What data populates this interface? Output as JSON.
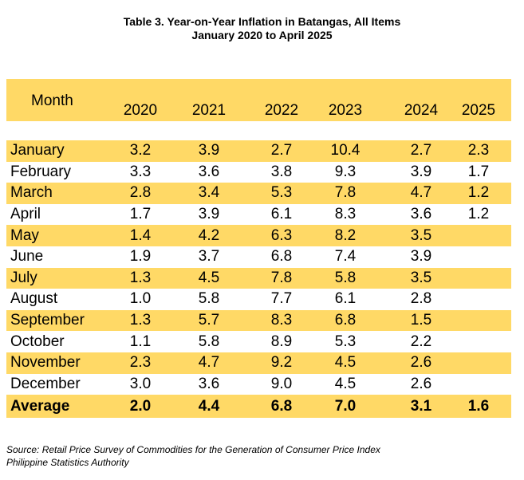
{
  "title_line1": "Table 3. Year-on-Year Inflation in Batangas, All Items",
  "title_line2": "January 2020 to April 2025",
  "header": {
    "month": "Month",
    "years": [
      "2020",
      "2021",
      "2022",
      "2023",
      "2024",
      "2025"
    ]
  },
  "rows": [
    {
      "month": "January",
      "values": [
        "3.2",
        "3.9",
        "2.7",
        "10.4",
        "2.7",
        "2.3"
      ]
    },
    {
      "month": "February",
      "values": [
        "3.3",
        "3.6",
        "3.8",
        "9.3",
        "3.9",
        "1.7"
      ]
    },
    {
      "month": "March",
      "values": [
        "2.8",
        "3.4",
        "5.3",
        "7.8",
        "4.7",
        "1.2"
      ]
    },
    {
      "month": "April",
      "values": [
        "1.7",
        "3.9",
        "6.1",
        "8.3",
        "3.6",
        "1.2"
      ]
    },
    {
      "month": "May",
      "values": [
        "1.4",
        "4.2",
        "6.3",
        "8.2",
        "3.5",
        ""
      ]
    },
    {
      "month": "June",
      "values": [
        "1.9",
        "3.7",
        "6.8",
        "7.4",
        "3.9",
        ""
      ]
    },
    {
      "month": "July",
      "values": [
        "1.3",
        "4.5",
        "7.8",
        "5.8",
        "3.5",
        ""
      ]
    },
    {
      "month": "August",
      "values": [
        "1.0",
        "5.8",
        "7.7",
        "6.1",
        "2.8",
        ""
      ]
    },
    {
      "month": "September",
      "values": [
        "1.3",
        "5.7",
        "8.3",
        "6.8",
        "1.5",
        ""
      ]
    },
    {
      "month": "October",
      "values": [
        "1.1",
        "5.8",
        "8.9",
        "5.3",
        "2.2",
        ""
      ]
    },
    {
      "month": "November",
      "values": [
        "2.3",
        "4.7",
        "9.2",
        "4.5",
        "2.6",
        ""
      ]
    },
    {
      "month": "December",
      "values": [
        "3.0",
        "3.6",
        "9.0",
        "4.5",
        "2.6",
        ""
      ]
    }
  ],
  "average": {
    "label": "Average",
    "values": [
      "2.0",
      "4.4",
      "6.8",
      "7.0",
      "3.1",
      "1.6"
    ]
  },
  "source_line1": "Source: Retail Price Survey of Commodities for the Generation of Consumer Price Index",
  "source_line2": "Philippine Statistics Authority",
  "colors": {
    "band": "#ffd966",
    "white": "#ffffff"
  }
}
